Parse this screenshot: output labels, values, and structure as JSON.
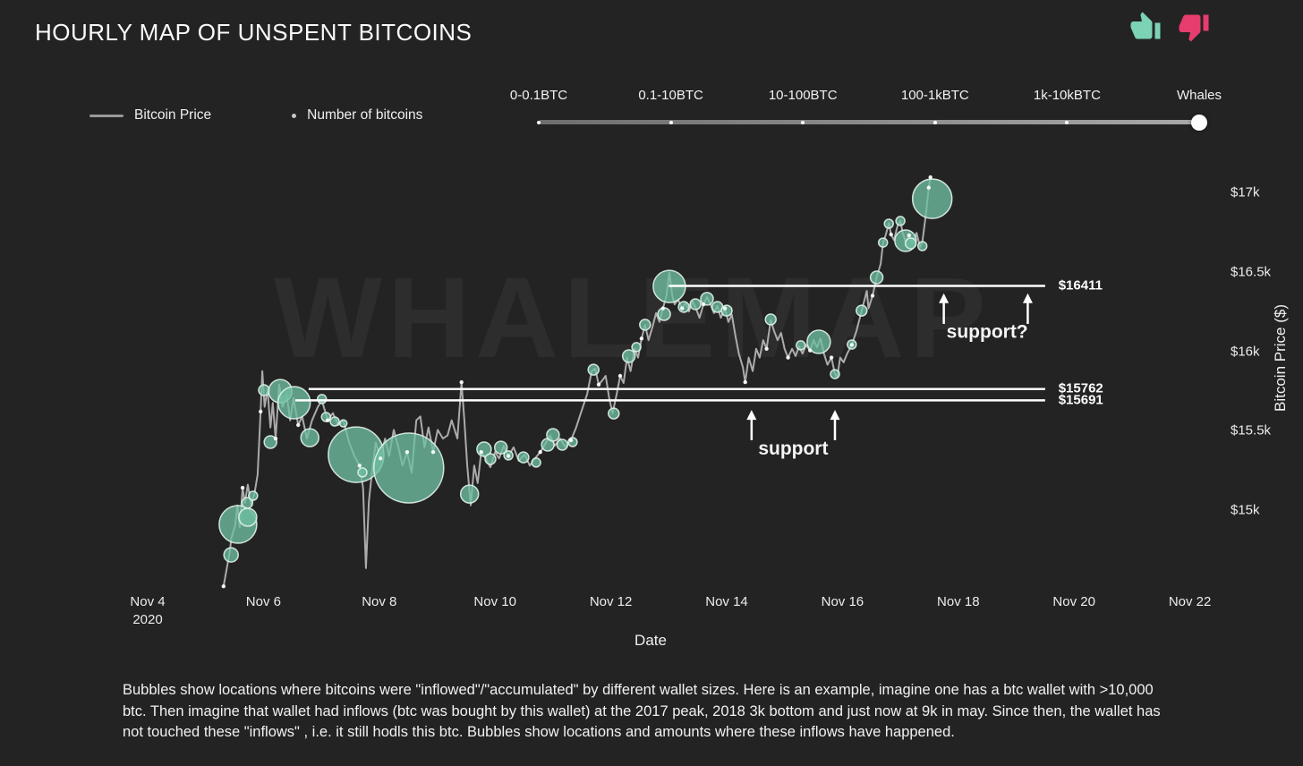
{
  "page": {
    "title": "HOURLY MAP OF UNSPENT BITCOINS"
  },
  "feedback": {
    "thumbs_up_color": "#7bd2b4",
    "thumbs_down_color": "#e73c6e"
  },
  "legend": {
    "items": [
      {
        "swatch": "line",
        "label": "Bitcoin Price"
      },
      {
        "swatch": "dot",
        "label": "Number of bitcoins"
      }
    ]
  },
  "slider": {
    "labels": [
      "0-0.1BTC",
      "0.1-10BTC",
      "10-100BTC",
      "100-1kBTC",
      "1k-10kBTC",
      "Whales"
    ],
    "selected": "Whales"
  },
  "watermark": "WHALEMAP",
  "note": "Bubbles show locations where bitcoins were \"inflowed\"/\"accumulated\" by different wallet sizes. Here is an example, imagine one has a btc wallet with >10,000 btc. Then imagine that wallet had inflows (btc was bought by this wallet) at the 2017 peak, 2018 3k bottom and just now at 9k in may. Since then, the wallet has not touched these \"inflows\" , i.e. it still hodls this btc. Bubbles show locations and amounts where these inflows have happened.",
  "colors": {
    "background": "#232323",
    "price_line": "#b3b3b3",
    "point_dot": "#ffffff",
    "bubble_fill": "#6fbfa2",
    "bubble_stroke": "#dff2e9",
    "support_line": "#ffffff",
    "watermark": "#2d2d2d"
  },
  "chart_data": {
    "type": "line",
    "title": "HOURLY MAP OF UNSPENT BITCOINS",
    "xlabel": "Date",
    "ylabel": "Bitcoin Price ($)",
    "x_unit": "day of Nov 2020 (fractional)",
    "xlim": [
      4,
      23
    ],
    "ylim": [
      14500,
      17250
    ],
    "grid": false,
    "legend_position": "top-left",
    "y_ticks": [
      {
        "label": "$17k",
        "value": 17000
      },
      {
        "label": "$16.5k",
        "value": 16500
      },
      {
        "label": "$16k",
        "value": 16000
      },
      {
        "label": "$15.5k",
        "value": 15500
      },
      {
        "label": "$15k",
        "value": 15000
      }
    ],
    "x_ticks": [
      {
        "label": "Nov 4",
        "sublabel": "2020",
        "day": 4
      },
      {
        "label": "Nov 6",
        "day": 6
      },
      {
        "label": "Nov 8",
        "day": 8
      },
      {
        "label": "Nov 10",
        "day": 10
      },
      {
        "label": "Nov 12",
        "day": 12
      },
      {
        "label": "Nov 14",
        "day": 14
      },
      {
        "label": "Nov 16",
        "day": 16
      },
      {
        "label": "Nov 18",
        "day": 18
      },
      {
        "label": "Nov 20",
        "day": 20
      },
      {
        "label": "Nov 22",
        "day": 22
      }
    ],
    "series": [
      {
        "name": "Bitcoin Price",
        "kind": "line",
        "points": [
          [
            5.31,
            14520
          ],
          [
            5.41,
            14720
          ],
          [
            5.45,
            14830
          ],
          [
            5.51,
            14900
          ],
          [
            5.55,
            15030
          ],
          [
            5.59,
            14890
          ],
          [
            5.64,
            15140
          ],
          [
            5.68,
            15045
          ],
          [
            5.73,
            15160
          ],
          [
            5.79,
            15030
          ],
          [
            5.85,
            15115
          ],
          [
            5.9,
            15225
          ],
          [
            5.95,
            15620
          ],
          [
            5.98,
            15875
          ],
          [
            6.02,
            15650
          ],
          [
            6.07,
            15760
          ],
          [
            6.12,
            15520
          ],
          [
            6.16,
            15675
          ],
          [
            6.21,
            15450
          ],
          [
            6.27,
            15790
          ],
          [
            6.33,
            15650
          ],
          [
            6.4,
            15730
          ],
          [
            6.46,
            15565
          ],
          [
            6.52,
            15705
          ],
          [
            6.6,
            15535
          ],
          [
            6.67,
            15590
          ],
          [
            6.75,
            15450
          ],
          [
            6.84,
            15565
          ],
          [
            6.94,
            15650
          ],
          [
            7.01,
            15690
          ],
          [
            7.11,
            15565
          ],
          [
            7.2,
            15610
          ],
          [
            7.29,
            15535
          ],
          [
            7.38,
            15565
          ],
          [
            7.48,
            15425
          ],
          [
            7.57,
            15340
          ],
          [
            7.66,
            15280
          ],
          [
            7.72,
            15140
          ],
          [
            7.77,
            14635
          ],
          [
            7.82,
            15055
          ],
          [
            7.88,
            15255
          ],
          [
            7.94,
            15425
          ],
          [
            8.02,
            15325
          ],
          [
            8.1,
            15450
          ],
          [
            8.17,
            15340
          ],
          [
            8.25,
            15505
          ],
          [
            8.33,
            15395
          ],
          [
            8.4,
            15280
          ],
          [
            8.48,
            15365
          ],
          [
            8.56,
            15235
          ],
          [
            8.64,
            15565
          ],
          [
            8.71,
            15590
          ],
          [
            8.78,
            15395
          ],
          [
            8.85,
            15520
          ],
          [
            8.93,
            15365
          ],
          [
            9.01,
            15505
          ],
          [
            9.1,
            15450
          ],
          [
            9.18,
            15470
          ],
          [
            9.25,
            15565
          ],
          [
            9.35,
            15450
          ],
          [
            9.42,
            15805
          ],
          [
            9.47,
            15565
          ],
          [
            9.52,
            15280
          ],
          [
            9.58,
            15030
          ],
          [
            9.64,
            15280
          ],
          [
            9.7,
            15170
          ],
          [
            9.76,
            15365
          ],
          [
            9.84,
            15325
          ],
          [
            9.92,
            15270
          ],
          [
            10.0,
            15365
          ],
          [
            10.07,
            15325
          ],
          [
            10.15,
            15405
          ],
          [
            10.23,
            15340
          ],
          [
            10.32,
            15395
          ],
          [
            10.41,
            15310
          ],
          [
            10.51,
            15350
          ],
          [
            10.6,
            15280
          ],
          [
            10.69,
            15325
          ],
          [
            10.78,
            15365
          ],
          [
            10.88,
            15425
          ],
          [
            10.95,
            15470
          ],
          [
            11.03,
            15405
          ],
          [
            11.12,
            15450
          ],
          [
            11.22,
            15395
          ],
          [
            11.31,
            15440
          ],
          [
            11.4,
            15520
          ],
          [
            11.49,
            15620
          ],
          [
            11.59,
            15730
          ],
          [
            11.67,
            15875
          ],
          [
            11.73,
            15890
          ],
          [
            11.79,
            15790
          ],
          [
            11.85,
            15815
          ],
          [
            11.91,
            15845
          ],
          [
            11.97,
            15705
          ],
          [
            12.03,
            15610
          ],
          [
            12.1,
            15730
          ],
          [
            12.16,
            15845
          ],
          [
            12.22,
            15800
          ],
          [
            12.28,
            15960
          ],
          [
            12.34,
            15875
          ],
          [
            12.41,
            16015
          ],
          [
            12.47,
            15960
          ],
          [
            12.53,
            16080
          ],
          [
            12.59,
            16165
          ],
          [
            12.65,
            16070
          ],
          [
            12.72,
            16155
          ],
          [
            12.78,
            16240
          ],
          [
            12.84,
            16185
          ],
          [
            12.9,
            16270
          ],
          [
            12.96,
            16350
          ],
          [
            13.01,
            16495
          ],
          [
            13.06,
            16350
          ],
          [
            13.1,
            16295
          ],
          [
            13.16,
            16325
          ],
          [
            13.23,
            16270
          ],
          [
            13.29,
            16305
          ],
          [
            13.35,
            16250
          ],
          [
            13.41,
            16315
          ],
          [
            13.47,
            16270
          ],
          [
            13.53,
            16210
          ],
          [
            13.6,
            16295
          ],
          [
            13.66,
            16340
          ],
          [
            13.72,
            16295
          ],
          [
            13.78,
            16240
          ],
          [
            13.84,
            16285
          ],
          [
            13.9,
            16210
          ],
          [
            13.97,
            16270
          ],
          [
            14.03,
            16185
          ],
          [
            14.09,
            16230
          ],
          [
            14.15,
            16100
          ],
          [
            14.21,
            15985
          ],
          [
            14.28,
            15900
          ],
          [
            14.32,
            15805
          ],
          [
            14.38,
            15960
          ],
          [
            14.45,
            15875
          ],
          [
            14.51,
            16015
          ],
          [
            14.57,
            15960
          ],
          [
            14.63,
            16070
          ],
          [
            14.69,
            16015
          ],
          [
            14.76,
            16195
          ],
          [
            14.82,
            16125
          ],
          [
            14.88,
            16070
          ],
          [
            14.94,
            16115
          ],
          [
            15.0,
            16015
          ],
          [
            15.06,
            15960
          ],
          [
            15.13,
            16015
          ],
          [
            15.19,
            15970
          ],
          [
            15.25,
            16030
          ],
          [
            15.31,
            15985
          ],
          [
            15.37,
            16040
          ],
          [
            15.44,
            16005
          ],
          [
            15.5,
            16070
          ],
          [
            15.56,
            16025
          ],
          [
            15.62,
            16080
          ],
          [
            15.68,
            15985
          ],
          [
            15.74,
            15915
          ],
          [
            15.81,
            15960
          ],
          [
            15.87,
            15855
          ],
          [
            15.91,
            15835
          ],
          [
            15.96,
            15960
          ],
          [
            16.02,
            15930
          ],
          [
            16.08,
            15985
          ],
          [
            16.16,
            16040
          ],
          [
            16.24,
            16125
          ],
          [
            16.3,
            16210
          ],
          [
            16.36,
            16295
          ],
          [
            16.42,
            16380
          ],
          [
            16.45,
            16270
          ],
          [
            16.52,
            16350
          ],
          [
            16.59,
            16465
          ],
          [
            16.66,
            16550
          ],
          [
            16.7,
            16680
          ],
          [
            16.75,
            16735
          ],
          [
            16.8,
            16805
          ],
          [
            16.84,
            16735
          ],
          [
            16.89,
            16700
          ],
          [
            16.95,
            16790
          ],
          [
            17.0,
            16820
          ],
          [
            17.04,
            16745
          ],
          [
            17.09,
            16690
          ],
          [
            17.15,
            16730
          ],
          [
            17.21,
            16680
          ],
          [
            17.28,
            16745
          ],
          [
            17.34,
            16655
          ],
          [
            17.38,
            16690
          ],
          [
            17.44,
            16860
          ],
          [
            17.49,
            17030
          ],
          [
            17.52,
            17095
          ]
        ]
      },
      {
        "name": "Number of bitcoins",
        "kind": "bubble",
        "points_format": [
          "day",
          "price",
          "radius_px"
        ],
        "points": [
          [
            5.44,
            14718,
            8
          ],
          [
            5.56,
            14910,
            21
          ],
          [
            5.73,
            14955,
            10
          ],
          [
            5.72,
            15045,
            6
          ],
          [
            5.82,
            15090,
            5
          ],
          [
            6.01,
            15755,
            6
          ],
          [
            6.29,
            15749,
            13
          ],
          [
            6.53,
            15676,
            18
          ],
          [
            6.12,
            15428,
            7
          ],
          [
            6.8,
            15456,
            10
          ],
          [
            7.01,
            15699,
            5
          ],
          [
            7.08,
            15586,
            5
          ],
          [
            7.23,
            15558,
            5
          ],
          [
            7.38,
            15546,
            4
          ],
          [
            7.6,
            15349,
            31
          ],
          [
            7.71,
            15237,
            5
          ],
          [
            8.51,
            15265,
            39
          ],
          [
            9.56,
            15101,
            10
          ],
          [
            9.81,
            15383,
            8
          ],
          [
            9.92,
            15321,
            6
          ],
          [
            10.1,
            15394,
            7
          ],
          [
            10.23,
            15344,
            5
          ],
          [
            10.49,
            15332,
            6
          ],
          [
            10.71,
            15299,
            5
          ],
          [
            10.91,
            15411,
            7
          ],
          [
            11.0,
            15473,
            7
          ],
          [
            11.16,
            15411,
            6
          ],
          [
            11.34,
            15428,
            5
          ],
          [
            11.7,
            15884,
            6
          ],
          [
            12.05,
            15608,
            6
          ],
          [
            12.31,
            15969,
            7
          ],
          [
            12.44,
            16026,
            5
          ],
          [
            12.59,
            16167,
            6
          ],
          [
            12.92,
            16234,
            7
          ],
          [
            13.01,
            16408,
            18
          ],
          [
            13.26,
            16279,
            6
          ],
          [
            13.46,
            16296,
            6
          ],
          [
            13.66,
            16330,
            7
          ],
          [
            13.84,
            16279,
            6
          ],
          [
            14.0,
            16256,
            6
          ],
          [
            14.76,
            16200,
            6
          ],
          [
            15.28,
            16037,
            5
          ],
          [
            15.59,
            16059,
            13
          ],
          [
            15.87,
            15856,
            5
          ],
          [
            16.16,
            16042,
            5
          ],
          [
            16.33,
            16256,
            6
          ],
          [
            16.59,
            16465,
            7
          ],
          [
            16.7,
            16684,
            5
          ],
          [
            16.8,
            16803,
            5
          ],
          [
            17.0,
            16820,
            5
          ],
          [
            17.09,
            16696,
            12
          ],
          [
            17.18,
            16679,
            6
          ],
          [
            17.38,
            16662,
            5
          ],
          [
            17.55,
            16960,
            22
          ]
        ]
      }
    ],
    "support_lines": [
      {
        "label": "$16411",
        "price": 16411,
        "from_day": 13.0,
        "to_day": 19.5,
        "label_day": 19.73
      },
      {
        "label": "$15762",
        "price": 15762,
        "from_day": 6.78,
        "to_day": 19.5,
        "label_day": 19.73
      },
      {
        "label": "$15691",
        "price": 15691,
        "from_day": 6.55,
        "to_day": 19.5,
        "label_day": 19.73
      }
    ],
    "annotations": [
      {
        "text": "support?",
        "day": 18.5,
        "price": 16085,
        "arrows": [
          {
            "day": 17.75,
            "tail_price": 16172,
            "tip_price": 16365
          },
          {
            "day": 19.2,
            "tail_price": 16172,
            "tip_price": 16365
          }
        ]
      },
      {
        "text": "support",
        "day": 15.15,
        "price": 15350,
        "arrows": [
          {
            "day": 14.43,
            "tail_price": 15440,
            "tip_price": 15630
          },
          {
            "day": 15.87,
            "tail_price": 15440,
            "tip_price": 15630
          }
        ]
      }
    ]
  }
}
